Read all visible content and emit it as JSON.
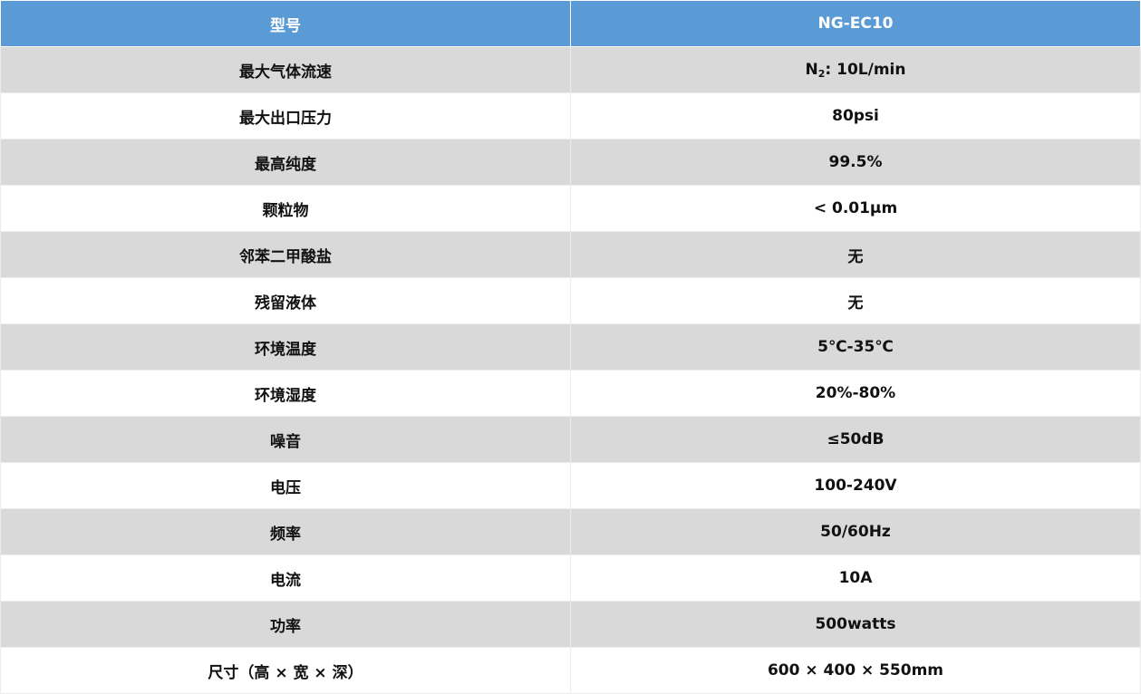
{
  "header": {
    "label": "型号",
    "value": "NG-EC10"
  },
  "first_row": {
    "label": "最大气体流速",
    "value_main": "N",
    "value_sub": "2",
    "value_rest": ": 10L/min"
  },
  "rows": [
    {
      "label": "最大出口压力",
      "value": "80psi"
    },
    {
      "label": "最高纯度",
      "value": "99.5%"
    },
    {
      "label": "颗粒物",
      "value": "< 0.01μm"
    },
    {
      "label": "邻苯二甲酸盐",
      "value": "无"
    },
    {
      "label": "残留液体",
      "value": "无"
    },
    {
      "label": "环境温度",
      "value": "5℃-35℃"
    },
    {
      "label": "环境湿度",
      "value": "20%-80%"
    },
    {
      "label": "噪音",
      "value": "≤50dB"
    },
    {
      "label": "电压",
      "value": "100-240V"
    },
    {
      "label": "频率",
      "value": "50/60Hz"
    },
    {
      "label": "电流",
      "value": "10A"
    },
    {
      "label": "功率",
      "value": "500watts"
    },
    {
      "label": "尺寸（高 × 宽 × 深）",
      "value": "600 × 400 × 550mm"
    }
  ],
  "colors": {
    "header": "#5b9bd5",
    "stripe": "#d9d9d9"
  }
}
